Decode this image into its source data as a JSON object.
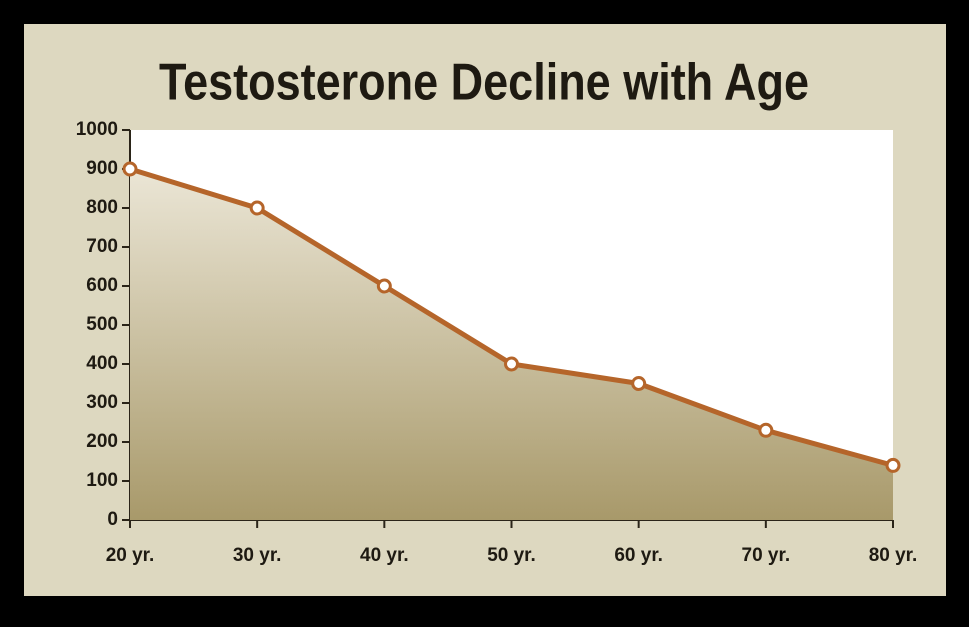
{
  "chart_data": {
    "type": "line",
    "title": "Testosterone Decline with Age",
    "categories": [
      "20 yr.",
      "30 yr.",
      "40 yr.",
      "50 yr.",
      "60 yr.",
      "70 yr.",
      "80 yr."
    ],
    "values": [
      900,
      800,
      600,
      400,
      350,
      230,
      140
    ],
    "color": "#b5652a",
    "area": true,
    "fill_color": "#b3a574",
    "ylim": [
      0,
      1000
    ],
    "yticks": [
      0,
      100,
      200,
      300,
      400,
      500,
      600,
      700,
      800,
      900,
      1000
    ]
  }
}
